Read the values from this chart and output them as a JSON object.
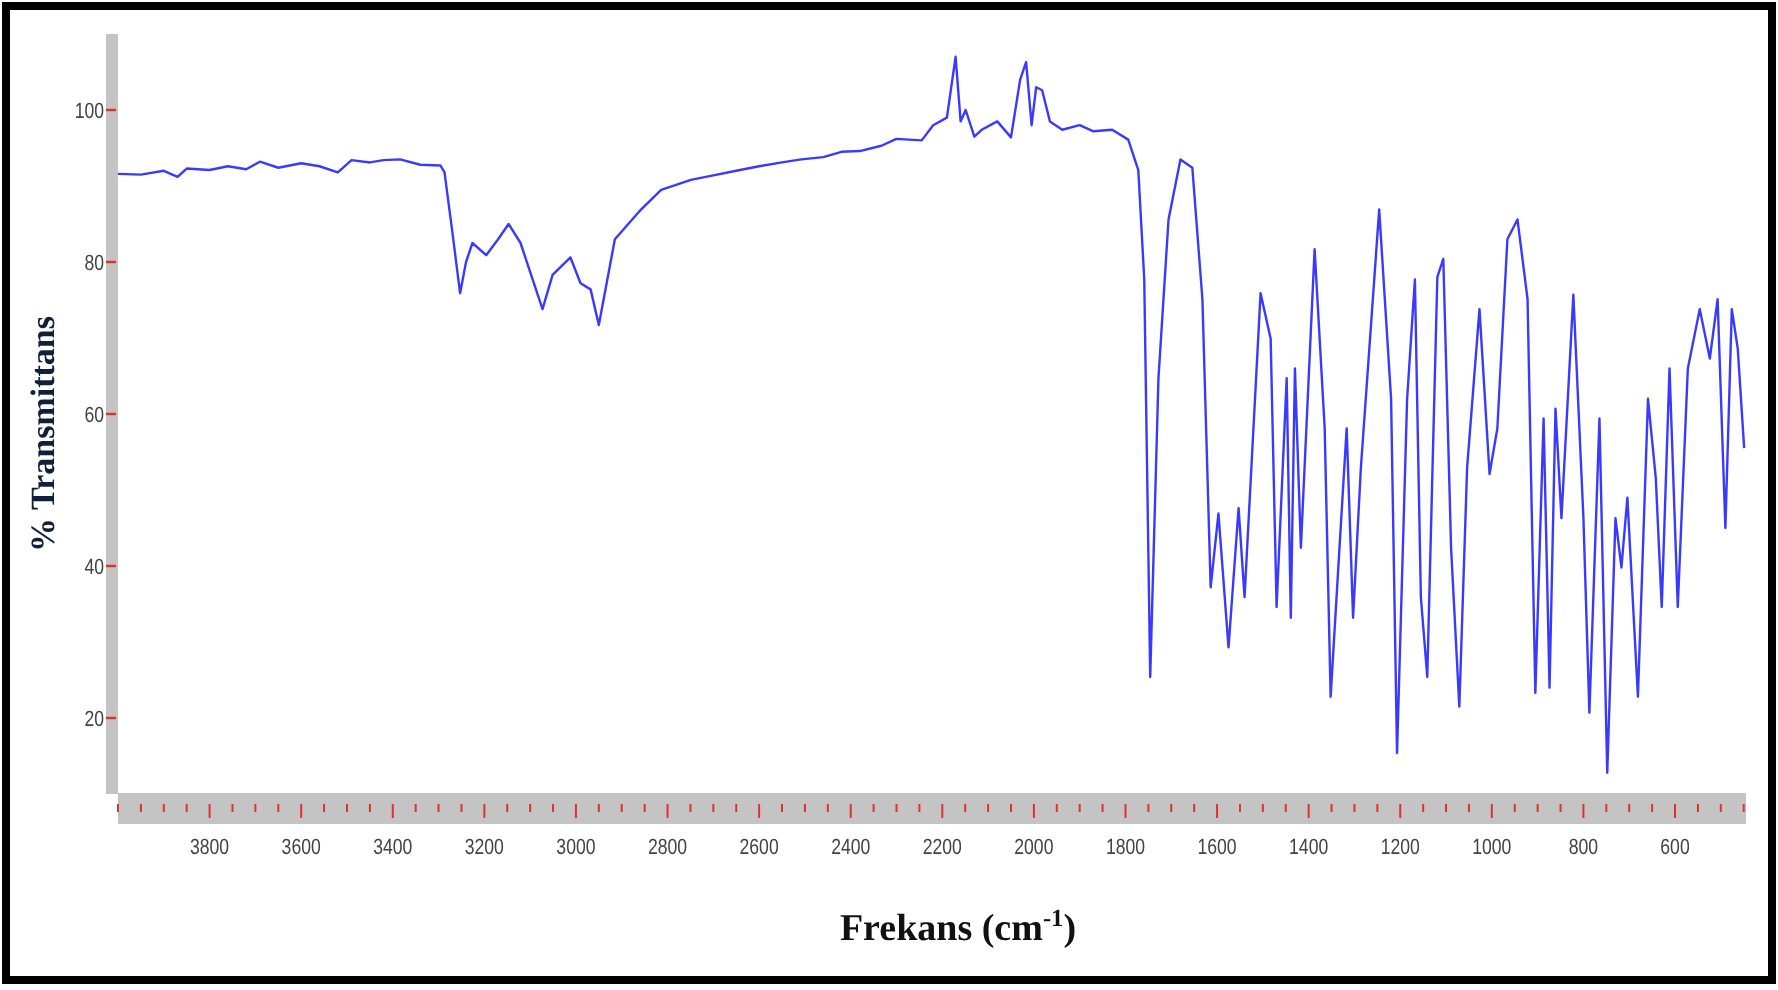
{
  "chart_data": {
    "type": "line",
    "xlabel": "Frekans (cm$^{-1}$)",
    "ylabel": "% Transmittans",
    "xlim": [
      4000,
      445
    ],
    "ylim": [
      10,
      110
    ],
    "yticks": [
      20,
      40,
      60,
      80,
      100
    ],
    "xticks": [
      {
        "value": 4000,
        "label": null
      },
      {
        "value": 3950,
        "label": null
      },
      {
        "value": 3900,
        "label": null
      },
      {
        "value": 3850,
        "label": null
      },
      3800,
      {
        "value": 3750,
        "label": null
      },
      {
        "value": 3700,
        "label": null
      },
      {
        "value": 3650,
        "label": null
      },
      3600,
      {
        "value": 3550,
        "label": null
      },
      {
        "value": 3500,
        "label": null
      },
      {
        "value": 3450,
        "label": null
      },
      3400,
      {
        "value": 3350,
        "label": null
      },
      {
        "value": 3300,
        "label": null
      },
      {
        "value": 3250,
        "label": null
      },
      3200,
      {
        "value": 3150,
        "label": null
      },
      {
        "value": 3100,
        "label": null
      },
      {
        "value": 3050,
        "label": null
      },
      3000,
      {
        "value": 2950,
        "label": null
      },
      {
        "value": 2900,
        "label": null
      },
      {
        "value": 2850,
        "label": null
      },
      2800,
      {
        "value": 2750,
        "label": null
      },
      {
        "value": 2700,
        "label": null
      },
      {
        "value": 2650,
        "label": null
      },
      2600,
      {
        "value": 2550,
        "label": null
      },
      {
        "value": 2500,
        "label": null
      },
      {
        "value": 2450,
        "label": null
      },
      2400,
      {
        "value": 2350,
        "label": null
      },
      {
        "value": 2300,
        "label": null
      },
      {
        "value": 2250,
        "label": null
      },
      2200,
      {
        "value": 2150,
        "label": null
      },
      {
        "value": 2100,
        "label": null
      },
      {
        "value": 2050,
        "label": null
      },
      2000,
      {
        "value": 1950,
        "label": null
      },
      {
        "value": 1900,
        "label": null
      },
      {
        "value": 1850,
        "label": null
      },
      1800,
      {
        "value": 1750,
        "label": null
      },
      {
        "value": 1700,
        "label": null
      },
      {
        "value": 1650,
        "label": null
      },
      1600,
      {
        "value": 1550,
        "label": null
      },
      {
        "value": 1500,
        "label": null
      },
      {
        "value": 1450,
        "label": null
      },
      1400,
      {
        "value": 1350,
        "label": null
      },
      {
        "value": 1300,
        "label": null
      },
      {
        "value": 1250,
        "label": null
      },
      1200,
      {
        "value": 1150,
        "label": null
      },
      {
        "value": 1100,
        "label": null
      },
      {
        "value": 1050,
        "label": null
      },
      1000,
      {
        "value": 950,
        "label": null
      },
      {
        "value": 900,
        "label": null
      },
      {
        "value": 850,
        "label": null
      },
      800,
      {
        "value": 750,
        "label": null
      },
      {
        "value": 700,
        "label": null
      },
      {
        "value": 650,
        "label": null
      },
      600,
      {
        "value": 550,
        "label": null
      },
      {
        "value": 500,
        "label": null
      },
      {
        "value": 450,
        "label": null
      }
    ],
    "series": [
      {
        "color": "#3a3aff",
        "x": [
          4000,
          3950,
          3900,
          3870,
          3850,
          3800,
          3760,
          3720,
          3690,
          3650,
          3600,
          3560,
          3520,
          3490,
          3450,
          3420,
          3384,
          3340,
          3296,
          3287,
          3270,
          3253,
          3240,
          3226,
          3196,
          3170,
          3147,
          3121,
          3073,
          3051,
          3012,
          2990,
          2968,
          2950,
          2915,
          2858,
          2814,
          2749,
          2700,
          2650,
          2600,
          2550,
          2508,
          2460,
          2420,
          2380,
          2333,
          2300,
          2245,
          2220,
          2190,
          2171,
          2160,
          2149,
          2130,
          2114,
          2080,
          2050,
          2030,
          2017,
          2005,
          1995,
          1982,
          1965,
          1938,
          1900,
          1870,
          1829,
          1794,
          1772,
          1759,
          1746,
          1728,
          1706,
          1680,
          1654,
          1632,
          1614,
          1597,
          1575,
          1553,
          1540,
          1505,
          1483,
          1470,
          1448,
          1439,
          1430,
          1417,
          1387,
          1365,
          1352,
          1334,
          1317,
          1303,
          1286,
          1246,
          1220,
          1207,
          1185,
          1168,
          1155,
          1141,
          1119,
          1106,
          1089,
          1071,
          1054,
          1027,
          1005,
          988,
          966,
          944,
          922,
          905,
          887,
          874,
          861,
          848,
          822,
          800,
          787,
          765,
          748,
          730,
          717,
          704,
          681,
          659,
          642,
          629,
          612,
          594,
          572,
          546,
          524,
          507,
          490,
          476,
          463,
          449
        ],
        "values": [
          91.6,
          91.5,
          92,
          91.2,
          92.3,
          92.1,
          92.6,
          92.2,
          93.2,
          92.4,
          93,
          92.6,
          91.8,
          93.4,
          93.1,
          93.4,
          93.5,
          92.8,
          92.7,
          91.8,
          84,
          75.9,
          80,
          82.5,
          80.9,
          83,
          85,
          82.5,
          73.8,
          78.3,
          80.6,
          77.2,
          76.4,
          71.7,
          83,
          86.9,
          89.5,
          90.8,
          91.4,
          92,
          92.6,
          93.1,
          93.5,
          93.8,
          94.5,
          94.6,
          95.3,
          96.2,
          96,
          98,
          99,
          107,
          98.5,
          100,
          96.5,
          97.4,
          98.5,
          96.4,
          104,
          106.3,
          98,
          103,
          102.6,
          98.5,
          97.4,
          98,
          97.2,
          97.4,
          96.1,
          92.1,
          77.7,
          25.4,
          64.7,
          85.6,
          93.5,
          92.4,
          75.1,
          37.2,
          46.9,
          29.3,
          47.6,
          35.9,
          75.9,
          69.9,
          34.6,
          64.7,
          33.2,
          66,
          42.4,
          81.7,
          58.1,
          22.8,
          41.1,
          58.1,
          33.2,
          52.9,
          86.9,
          62,
          15.4,
          62,
          77.7,
          35.9,
          25.4,
          78,
          80.4,
          42.4,
          21.5,
          52.9,
          73.8,
          52.1,
          58.1,
          83,
          85.6,
          75.1,
          23.3,
          59.4,
          24,
          60.7,
          46.3,
          75.7,
          46.3,
          20.7,
          59.4,
          12.8,
          46.3,
          39.8,
          49,
          22.8,
          62,
          51.6,
          34.6,
          66,
          34.6,
          66,
          73.8,
          67.3,
          75.1,
          45,
          73.8,
          68.6,
          55.5
        ]
      }
    ]
  }
}
